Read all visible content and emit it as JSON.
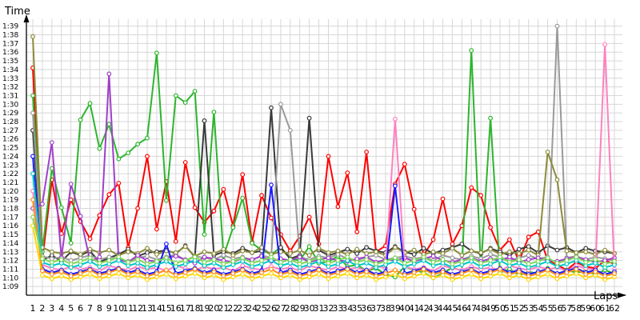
{
  "chart_data": {
    "type": "line",
    "title": "",
    "xlabel": "Laps",
    "ylabel": "Time",
    "x_ticks": [
      "1",
      "2",
      "3",
      "4",
      "5",
      "6",
      "7",
      "8",
      "9",
      "10",
      "11",
      "12",
      "13",
      "14",
      "15",
      "16",
      "17",
      "18",
      "19",
      "20",
      "21",
      "22",
      "23",
      "24",
      "25",
      "26",
      "27",
      "28",
      "29",
      "30",
      "31",
      "32",
      "33",
      "34",
      "35",
      "36",
      "37",
      "38",
      "39",
      "40",
      "41",
      "42",
      "43",
      "44",
      "45",
      "46",
      "47",
      "48",
      "49",
      "50",
      "51",
      "52",
      "53",
      "54",
      "55",
      "56",
      "57",
      "58",
      "59",
      "60",
      "61",
      "62"
    ],
    "y_ticks": [
      "1:09",
      "1:10",
      "1:11",
      "1:12",
      "1:13",
      "1:14",
      "1:15",
      "1:16",
      "1:17",
      "1:18",
      "1:19",
      "1:20",
      "1:21",
      "1:22",
      "1:23",
      "1:24",
      "1:25",
      "1:26",
      "1:27",
      "1:28",
      "1:29",
      "1:30",
      "1:31",
      "1:32",
      "1:33",
      "1:34",
      "1:35",
      "1:36",
      "1:37",
      "1:38",
      "1:39"
    ],
    "y_unit": "seconds",
    "ylim": [
      68,
      99.8
    ],
    "xlim": [
      1,
      62
    ],
    "grid": true,
    "legend": "none",
    "series": [
      {
        "color": "#ff0000",
        "values": [
          94.2,
          72.0,
          81.3,
          75.1,
          79.0,
          76.5,
          74.5,
          77.2,
          79.6,
          80.9,
          73.5,
          78.0,
          84.0,
          75.6,
          81.1,
          74.2,
          83.3,
          78.1,
          76.4,
          77.7,
          80.2,
          76.0,
          81.9,
          74.1,
          79.5,
          76.9,
          75.0,
          73.1,
          74.8,
          77.0,
          73.9,
          84.0,
          78.2,
          82.1,
          75.3,
          84.5,
          73.0,
          73.7,
          80.8,
          83.1,
          77.9,
          72.6,
          74.4,
          79.1,
          73.9,
          76.0,
          80.4,
          79.5,
          75.8,
          73.2,
          74.4,
          71.9,
          74.7,
          75.3,
          72.0,
          71.5,
          70.9,
          71.8,
          71.3,
          71.1,
          72.0,
          71.6
        ]
      },
      {
        "color": "#2db52d",
        "values": [
          91.0,
          73.0,
          82.6,
          78.1,
          74.0,
          88.2,
          90.1,
          84.9,
          87.7,
          83.7,
          84.4,
          85.4,
          86.1,
          95.9,
          78.9,
          91.0,
          90.2,
          91.5,
          75.0,
          89.1,
          72.5,
          75.8,
          79.2,
          74.0,
          73.2,
          72.7,
          73.5,
          72.2,
          72.0,
          73.6,
          71.7,
          71.9,
          72.5,
          71.3,
          71.5,
          70.8,
          71.1,
          70.4,
          70.1,
          71.3,
          70.9,
          70.6,
          70.0,
          70.5,
          71.2,
          70.8,
          96.2,
          71.0,
          88.4,
          70.6,
          71.0,
          70.3,
          70.7,
          70.5,
          71.1,
          70.4,
          70.9,
          70.6,
          70.8,
          70.4,
          70.9,
          70.5
        ]
      },
      {
        "color": "#3a3a3a",
        "values": [
          87.0,
          72.0,
          72.6,
          71.9,
          73.0,
          72.6,
          73.1,
          71.8,
          72.3,
          72.7,
          73.3,
          72.5,
          72.9,
          73.0,
          73.2,
          72.8,
          73.7,
          72.4,
          88.1,
          72.6,
          73.0,
          72.8,
          73.4,
          72.9,
          73.1,
          89.6,
          73.5,
          72.2,
          72.6,
          88.4,
          73.2,
          72.6,
          72.9,
          73.3,
          72.8,
          73.5,
          73.1,
          72.9,
          73.6,
          73.0,
          72.7,
          73.4,
          72.8,
          73.2,
          73.5,
          73.9,
          73.1,
          72.8,
          73.4,
          73.0,
          72.6,
          73.3,
          73.6,
          72.9,
          73.7,
          73.2,
          73.5,
          72.9,
          73.4,
          73.1,
          73.0,
          72.8
        ]
      },
      {
        "color": "#9a9a9a",
        "values": [
          89.0,
          72.5,
          72.2,
          72.4,
          72.0,
          72.3,
          72.6,
          72.1,
          72.4,
          72.2,
          71.9,
          72.3,
          72.5,
          72.1,
          72.4,
          72.7,
          72.0,
          72.5,
          72.3,
          72.1,
          72.6,
          72.2,
          72.4,
          72.0,
          72.6,
          72.3,
          90.0,
          87.0,
          72.4,
          72.1,
          72.5,
          72.3,
          72.7,
          72.2,
          72.0,
          72.4,
          72.6,
          72.1,
          72.3,
          72.5,
          72.2,
          72.4,
          72.0,
          72.6,
          72.3,
          72.1,
          72.5,
          72.2,
          72.7,
          72.4,
          72.0,
          72.3,
          72.6,
          72.2,
          72.4,
          99.0,
          72.3,
          72.5,
          72.1,
          72.4,
          72.2,
          72.0
        ]
      },
      {
        "color": "#8b8b3a",
        "values": [
          97.8,
          73.5,
          73.0,
          72.8,
          73.1,
          72.7,
          73.3,
          72.9,
          73.2,
          72.6,
          73.0,
          72.8,
          73.4,
          72.7,
          73.1,
          72.9,
          73.6,
          72.5,
          73.0,
          72.8,
          73.3,
          72.6,
          73.1,
          72.9,
          73.5,
          72.7,
          73.0,
          72.8,
          73.2,
          72.6,
          73.4,
          72.9,
          73.1,
          72.7,
          73.3,
          72.8,
          73.0,
          72.6,
          73.5,
          72.9,
          73.2,
          72.7,
          73.0,
          72.8,
          73.4,
          72.6,
          73.1,
          72.9,
          73.3,
          72.7,
          73.0,
          72.8,
          73.2,
          72.6,
          84.5,
          81.3,
          73.1,
          72.9,
          73.0,
          72.7,
          73.2,
          72.8
        ]
      },
      {
        "color": "#a040c8",
        "values": [
          78.0,
          78.5,
          85.6,
          72.3,
          80.8,
          77.1,
          71.9,
          72.4,
          93.5,
          72.1,
          71.8,
          72.6,
          72.0,
          71.9,
          72.3,
          72.5,
          72.1,
          71.7,
          72.4,
          72.2,
          72.0,
          71.8,
          72.3,
          72.1,
          72.5,
          71.9,
          72.2,
          72.0,
          72.4,
          71.8,
          72.1,
          72.3,
          72.0,
          71.9,
          72.2,
          72.4,
          71.8,
          72.1,
          72.0,
          72.3,
          71.9,
          72.2,
          72.5,
          72.0,
          71.8,
          72.1,
          72.3,
          71.9,
          72.2,
          72.0,
          72.4,
          71.8,
          72.1,
          72.3,
          72.0,
          71.9,
          72.2,
          72.4,
          72.1,
          71.8,
          72.0,
          72.3
        ]
      },
      {
        "color": "#ff80c0",
        "values": [
          80.0,
          71.5,
          71.1,
          70.9,
          71.3,
          71.0,
          71.2,
          70.8,
          71.4,
          71.1,
          70.9,
          71.3,
          71.0,
          71.2,
          70.8,
          71.4,
          71.1,
          70.9,
          71.3,
          71.0,
          71.2,
          70.8,
          71.4,
          71.1,
          70.9,
          71.3,
          71.0,
          71.2,
          70.8,
          71.4,
          71.1,
          70.9,
          71.3,
          71.0,
          71.2,
          70.8,
          71.4,
          71.1,
          88.3,
          71.3,
          71.0,
          71.2,
          70.8,
          71.4,
          71.1,
          70.9,
          71.3,
          71.0,
          71.2,
          70.8,
          71.4,
          71.1,
          70.9,
          71.3,
          71.0,
          71.2,
          70.8,
          71.4,
          71.1,
          70.9,
          96.9,
          71.0
        ]
      },
      {
        "color": "#1a1aff",
        "values": [
          84.0,
          71.0,
          70.6,
          70.9,
          70.4,
          70.7,
          71.0,
          70.5,
          70.8,
          71.1,
          70.6,
          70.9,
          70.4,
          70.7,
          73.9,
          70.5,
          70.8,
          71.1,
          70.6,
          70.9,
          70.4,
          70.7,
          71.0,
          70.5,
          70.8,
          80.7,
          70.6,
          70.9,
          70.4,
          70.7,
          71.0,
          70.5,
          70.8,
          71.1,
          70.6,
          70.9,
          70.4,
          70.7,
          80.6,
          70.5,
          70.8,
          71.1,
          70.6,
          70.9,
          70.4,
          70.7,
          71.0,
          70.5,
          70.8,
          71.1,
          70.6,
          70.9,
          70.4,
          70.7,
          71.0,
          70.5,
          70.8,
          71.1,
          70.6,
          70.9,
          70.4,
          70.7
        ]
      },
      {
        "color": "#00c8c8",
        "values": [
          82.0,
          71.8,
          71.4,
          71.7,
          71.2,
          71.5,
          71.9,
          71.3,
          71.6,
          72.0,
          71.4,
          71.7,
          71.2,
          71.5,
          71.9,
          71.3,
          71.6,
          72.0,
          71.4,
          71.7,
          71.2,
          71.5,
          71.9,
          71.3,
          71.6,
          72.0,
          71.4,
          71.7,
          71.2,
          71.5,
          71.9,
          71.3,
          71.6,
          72.0,
          71.4,
          71.7,
          71.2,
          71.5,
          71.9,
          71.3,
          71.6,
          72.0,
          71.4,
          71.7,
          71.2,
          71.5,
          71.9,
          71.3,
          71.6,
          72.0,
          71.4,
          71.7,
          71.2,
          71.5,
          71.9,
          71.3,
          71.6,
          72.0,
          71.4,
          71.7,
          71.2,
          71.5
        ]
      },
      {
        "color": "#ffd800",
        "values": [
          76.0,
          70.3,
          69.9,
          70.2,
          69.8,
          70.1,
          70.4,
          69.9,
          70.2,
          70.5,
          70.0,
          70.3,
          69.8,
          70.1,
          70.4,
          69.9,
          70.2,
          70.5,
          70.0,
          70.3,
          69.8,
          70.1,
          70.4,
          69.9,
          70.2,
          70.5,
          70.0,
          70.3,
          69.8,
          70.1,
          70.4,
          69.9,
          70.2,
          70.5,
          70.0,
          70.3,
          69.8,
          70.1,
          70.4,
          69.9,
          70.2,
          70.5,
          70.0,
          70.3,
          69.8,
          70.1,
          70.4,
          69.9,
          70.2,
          70.5,
          70.0,
          70.3,
          69.8,
          70.1,
          70.4,
          69.9,
          70.2,
          70.5,
          70.0,
          70.3,
          69.8,
          70.1
        ]
      },
      {
        "color": "#ff8c1a",
        "values": [
          79.0,
          70.8,
          70.4,
          70.7,
          70.2,
          70.5,
          70.9,
          70.3,
          70.6,
          71.0,
          70.4,
          70.7,
          70.2,
          70.5,
          70.9,
          70.3,
          70.6,
          71.0,
          70.4,
          70.7,
          70.2,
          70.5,
          70.9,
          70.3,
          70.6,
          71.0,
          70.4,
          70.7,
          70.2,
          70.5,
          70.9,
          70.3,
          70.6,
          71.0,
          70.4,
          70.7,
          70.2,
          70.5,
          70.9,
          70.3,
          70.6,
          71.0,
          70.4,
          70.7,
          70.2,
          70.5,
          70.9,
          70.3,
          70.6,
          71.0,
          70.4,
          70.7,
          70.2,
          70.5,
          70.9,
          70.3,
          70.6,
          71.0,
          70.4,
          70.7,
          70.2,
          70.5
        ]
      },
      {
        "color": "#7ed957",
        "values": [
          77.0,
          72.2,
          71.8,
          72.1,
          71.6,
          71.9,
          72.3,
          71.7,
          72.0,
          72.4,
          71.8,
          72.1,
          71.6,
          71.9,
          72.3,
          71.7,
          72.0,
          72.4,
          71.8,
          72.1,
          71.6,
          71.9,
          72.3,
          71.7,
          72.0,
          72.4,
          71.8,
          72.1,
          71.6,
          71.9,
          72.3,
          71.7,
          72.0,
          72.4,
          71.8,
          72.1,
          71.6,
          71.9,
          72.3,
          71.7,
          72.0,
          72.4,
          71.8,
          72.1,
          71.6,
          71.9,
          72.3,
          71.7,
          72.0,
          72.4,
          71.8,
          72.1,
          71.6,
          71.9,
          72.3,
          71.7,
          72.0,
          72.4,
          71.8,
          72.1,
          71.6,
          71.9
        ]
      }
    ]
  }
}
